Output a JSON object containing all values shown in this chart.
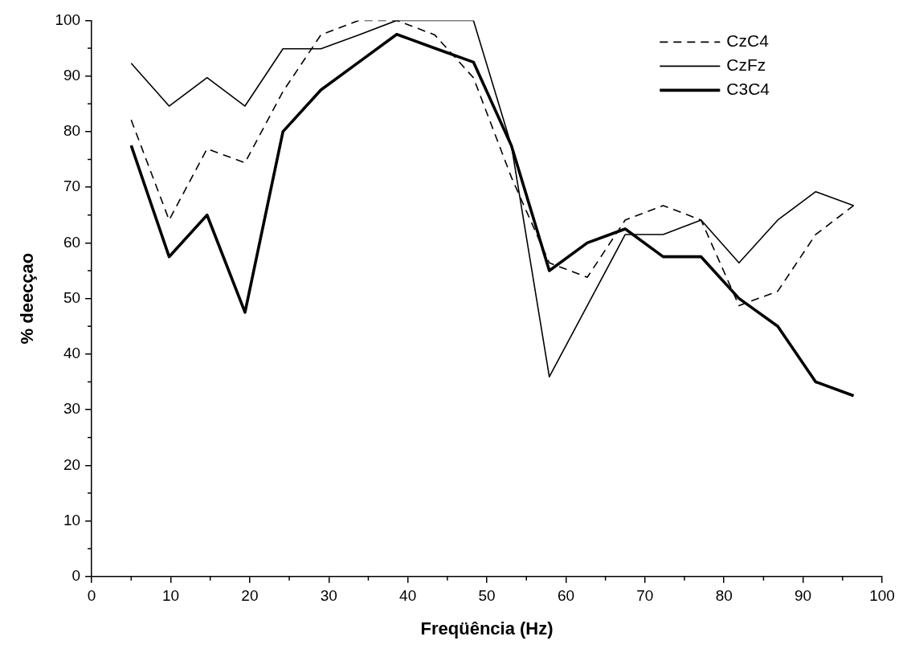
{
  "chart_data": {
    "type": "line",
    "xlabel": "Freqüência (Hz)",
    "ylabel": "% deecçao",
    "x": [
      5,
      9.8,
      14.6,
      19.4,
      24.2,
      29,
      33.8,
      38.6,
      43.4,
      48.3,
      53.1,
      57.9,
      62.7,
      67.5,
      72.3,
      77.1,
      81.9,
      86.8,
      91.6,
      96.4
    ],
    "series": [
      {
        "name": "CzC4",
        "color": "#000000",
        "line_style": "dashed",
        "values": [
          82.1,
          64.1,
          76.9,
          74.4,
          87.2,
          97.4,
          100,
          100,
          97.4,
          89.7,
          71.8,
          56.4,
          53.8,
          64.1,
          66.7,
          64.1,
          48.7,
          51.3,
          61.5,
          66.7
        ]
      },
      {
        "name": "CzFz",
        "color": "#000000",
        "line_style": "solid",
        "values": [
          92.3,
          84.6,
          89.7,
          84.6,
          94.9,
          94.9,
          97.4,
          100,
          100,
          100,
          77.5,
          35.9,
          48.7,
          61.5,
          61.5,
          64.1,
          56.4,
          64.1,
          69.2,
          66.7
        ]
      },
      {
        "name": "C3C4",
        "color": "#000000",
        "line_style": "solid",
        "values": [
          77.5,
          57.5,
          65,
          47.5,
          80,
          87.5,
          92.5,
          97.5,
          95,
          92.5,
          77.5,
          55,
          60,
          62.5,
          57.5,
          57.5,
          50,
          45,
          35,
          32.5
        ]
      }
    ],
    "xlim": [
      0,
      100
    ],
    "xticks": [
      0,
      10,
      20,
      30,
      40,
      50,
      60,
      70,
      80,
      90,
      100
    ],
    "ylim": [
      0,
      100
    ],
    "yticks": [
      0,
      10,
      20,
      30,
      40,
      50,
      60,
      70,
      80,
      90,
      100
    ],
    "grid": false,
    "legend": "top right",
    "marker": "none"
  }
}
